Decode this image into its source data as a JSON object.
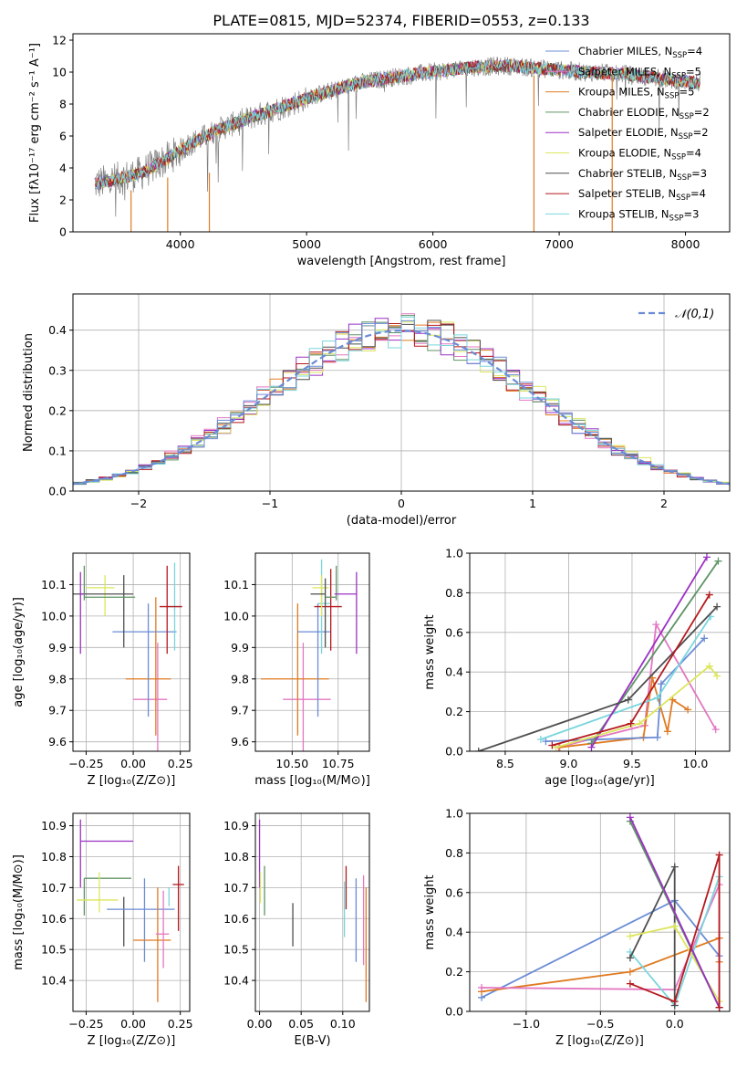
{
  "title": "PLATE=0815, MJD=52374, FIBERID=0553, z=0.133",
  "colors": [
    "#7f7f7f",
    "#e377c2",
    "#e07b22",
    "#5f9466",
    "#9b30c4",
    "#dce65c",
    "#4f4f4f",
    "#b5191d",
    "#7ad6dd",
    "#6a8cd6"
  ],
  "chart_data": [
    {
      "id": "spectrum",
      "type": "line",
      "xlabel": "wavelength [Angstrom, rest frame]",
      "ylabel": "Flux [fλ10⁻¹⁷ erg cm⁻² s⁻¹ A⁻¹]",
      "xlim": [
        3150,
        8350
      ],
      "ylim": [
        0,
        12.4
      ],
      "xticks": [
        4000,
        5000,
        6000,
        7000,
        8000
      ],
      "yticks": [
        0,
        2,
        4,
        6,
        8,
        10,
        12
      ],
      "data_range": [
        3320,
        8120
      ],
      "continuum": {
        "x": [
          3320,
          3500,
          3700,
          3900,
          4100,
          4300,
          4500,
          4800,
          5100,
          5400,
          5700,
          6000,
          6300,
          6600,
          6900,
          7200,
          7500,
          7800,
          8120
        ],
        "y": [
          3.0,
          3.3,
          3.7,
          4.6,
          5.6,
          6.4,
          7.0,
          7.8,
          8.6,
          9.3,
          9.7,
          10.0,
          10.3,
          10.4,
          10.2,
          10.0,
          9.9,
          9.6,
          9.3
        ]
      },
      "grid": false,
      "legend": {
        "placement": "right",
        "entries": [
          {
            "label": "Chabrier MILES, N",
            "sub": "SSP",
            "tail": "=4",
            "color_index": 9
          },
          {
            "label": "Salpeter MILES, N",
            "sub": "SSP",
            "tail": "=5",
            "color_index": 1
          },
          {
            "label": "Kroupa MILES, N",
            "sub": "SSP",
            "tail": "=5",
            "color_index": 2
          },
          {
            "label": "Chabrier ELODIE, N",
            "sub": "SSP",
            "tail": "=2",
            "color_index": 3
          },
          {
            "label": "Salpeter ELODIE, N",
            "sub": "SSP",
            "tail": "=2",
            "color_index": 4
          },
          {
            "label": "Kroupa ELODIE, N",
            "sub": "SSP",
            "tail": "=4",
            "color_index": 5
          },
          {
            "label": "Chabrier STELIB, N",
            "sub": "SSP",
            "tail": "=3",
            "color_index": 6
          },
          {
            "label": "Salpeter STELIB, N",
            "sub": "SSP",
            "tail": "=4",
            "color_index": 7
          },
          {
            "label": "Kroupa STELIB, N",
            "sub": "SSP",
            "tail": "=3",
            "color_index": 8
          }
        ]
      }
    },
    {
      "id": "residuals",
      "type": "line",
      "xlabel": "(data-model)/error",
      "ylabel": "Normed distribution",
      "xlim": [
        -2.5,
        2.5
      ],
      "ylim": [
        0,
        0.49
      ],
      "xticks": [
        -2,
        -1,
        0,
        1,
        2
      ],
      "yticks": [
        0.0,
        0.1,
        0.2,
        0.3,
        0.4
      ],
      "grid": true,
      "bin_width": 0.1,
      "legend": {
        "placement": "top-right",
        "label": "𝒩(0,1)",
        "color_index": 9
      },
      "gaussian": {
        "mean": 0,
        "sigma": 1
      }
    },
    {
      "id": "age_vs_Z",
      "type": "scatter",
      "xlabel": "Z [log₁₀(Z/Z⊙)]",
      "ylabel": "age [log₁₀(age/yr)]",
      "xlim": [
        -0.32,
        0.3
      ],
      "ylim": [
        9.57,
        10.2
      ],
      "xticks": [
        -0.25,
        0.0,
        0.25
      ],
      "yticks": [
        9.6,
        9.7,
        9.8,
        9.9,
        10.0,
        10.1
      ],
      "grid": true,
      "points": [
        {
          "ci": 1,
          "x": 0.13,
          "y": 9.735,
          "xe": [
            0.13,
            0.05
          ],
          "ye": [
            0.22,
            0.18
          ]
        },
        {
          "ci": 2,
          "x": 0.12,
          "y": 9.8,
          "xe": [
            0.16,
            0.08
          ],
          "ye": [
            0.18,
            0.26
          ]
        },
        {
          "ci": 9,
          "x": 0.08,
          "y": 9.95,
          "xe": [
            0.19,
            0.15
          ],
          "ye": [
            0.27,
            0.09
          ]
        },
        {
          "ci": 8,
          "x": 0.22,
          "y": 10.03,
          "xe": [
            0.04,
            0.03
          ],
          "ye": [
            0.14,
            0.14
          ]
        },
        {
          "ci": 7,
          "x": 0.18,
          "y": 10.03,
          "xe": [
            0.04,
            0.08
          ],
          "ye": [
            0.15,
            0.13
          ]
        },
        {
          "ci": 5,
          "x": -0.15,
          "y": 10.09,
          "xe": [
            0.1,
            0.05
          ],
          "ye": [
            0.09,
            0.04
          ]
        },
        {
          "ci": 6,
          "x": -0.05,
          "y": 10.07,
          "xe": [
            0.28,
            0.05
          ],
          "ye": [
            0.17,
            0.06
          ]
        },
        {
          "ci": 3,
          "x": -0.26,
          "y": 10.06,
          "xe": [
            0.0,
            0.27
          ],
          "ye": [
            0.01,
            0.1
          ]
        },
        {
          "ci": 4,
          "x": -0.28,
          "y": 10.07,
          "xe": [
            0.0,
            0.02
          ],
          "ye": [
            0.19,
            0.07
          ]
        }
      ]
    },
    {
      "id": "age_vs_mass",
      "type": "scatter",
      "xlabel": "mass [log₁₀(M/M⊙)]",
      "xlim": [
        10.3,
        10.92
      ],
      "ylim": [
        9.57,
        10.2
      ],
      "xticks": [
        10.5,
        10.75
      ],
      "yticks": [
        9.6,
        9.7,
        9.8,
        9.9,
        10.0,
        10.1
      ],
      "grid": true,
      "points": [
        {
          "ci": 1,
          "x": 10.56,
          "y": 9.735,
          "xe": [
            0.11,
            0.15
          ],
          "ye": [
            0.18,
            0.18
          ]
        },
        {
          "ci": 2,
          "x": 10.53,
          "y": 9.8,
          "xe": [
            0.2,
            0.17
          ],
          "ye": [
            0.18,
            0.24
          ]
        },
        {
          "ci": 9,
          "x": 10.64,
          "y": 9.95,
          "xe": [
            0.11,
            0.07
          ],
          "ye": [
            0.27,
            0.09
          ]
        },
        {
          "ci": 8,
          "x": 10.66,
          "y": 10.04,
          "xe": [
            0.02,
            0.05
          ],
          "ye": [
            0.16,
            0.14
          ]
        },
        {
          "ci": 7,
          "x": 10.71,
          "y": 10.03,
          "xe": [
            0.09,
            0.06
          ],
          "ye": [
            0.14,
            0.12
          ]
        },
        {
          "ci": 5,
          "x": 10.66,
          "y": 10.09,
          "xe": [
            0.05,
            0.04
          ],
          "ye": [
            0.09,
            0.04
          ]
        },
        {
          "ci": 6,
          "x": 10.68,
          "y": 10.07,
          "xe": [
            0.08,
            0.0
          ],
          "ye": [
            0.17,
            0.05
          ]
        },
        {
          "ci": 3,
          "x": 10.74,
          "y": 10.06,
          "xe": [
            0.06,
            0.0
          ],
          "ye": [
            0.01,
            0.1
          ]
        },
        {
          "ci": 4,
          "x": 10.85,
          "y": 10.07,
          "xe": [
            0.12,
            0.0
          ],
          "ye": [
            0.19,
            0.07
          ]
        }
      ]
    },
    {
      "id": "weight_vs_age",
      "type": "line",
      "xlabel": "age [log₁₀(age/yr)]",
      "ylabel": "mass weight",
      "xlim": [
        8.22,
        10.27
      ],
      "ylim": [
        0,
        1.0
      ],
      "xticks": [
        8.5,
        9.0,
        9.5,
        10.0
      ],
      "yticks": [
        0.0,
        0.2,
        0.4,
        0.6,
        0.8,
        1.0
      ],
      "grid": true,
      "series": [
        {
          "ci": 1,
          "x": [
            8.92,
            9.6,
            9.69,
            10.16
          ],
          "y": [
            0.02,
            0.13,
            0.64,
            0.11
          ]
        },
        {
          "ci": 2,
          "x": [
            8.93,
            9.59,
            9.66,
            9.78,
            9.82,
            9.94
          ],
          "y": [
            0.02,
            0.07,
            0.37,
            0.1,
            0.26,
            0.21
          ]
        },
        {
          "ci": 9,
          "x": [
            8.82,
            9.7,
            9.73,
            10.07
          ],
          "y": [
            0.05,
            0.07,
            0.34,
            0.57
          ]
        },
        {
          "ci": 8,
          "x": [
            8.78,
            9.7,
            10.12
          ],
          "y": [
            0.06,
            0.27,
            0.68
          ]
        },
        {
          "ci": 3,
          "x": [
            9.18,
            10.18
          ],
          "y": [
            0.04,
            0.96
          ]
        },
        {
          "ci": 4,
          "x": [
            9.18,
            10.09
          ],
          "y": [
            0.02,
            0.98
          ]
        },
        {
          "ci": 5,
          "x": [
            8.9,
            9.56,
            10.11,
            10.17
          ],
          "y": [
            0.02,
            0.14,
            0.43,
            0.38
          ]
        },
        {
          "ci": 6,
          "x": [
            8.29,
            9.47,
            10.17
          ],
          "y": [
            0.0,
            0.26,
            0.73
          ]
        },
        {
          "ci": 7,
          "x": [
            8.87,
            9.49,
            10.11
          ],
          "y": [
            0.03,
            0.14,
            0.79
          ]
        }
      ]
    },
    {
      "id": "mass_vs_Z",
      "type": "scatter",
      "xlabel": "Z [log₁₀(Z/Z⊙)]",
      "ylabel": "mass [log₁₀(M/M⊙)]",
      "xlim": [
        -0.32,
        0.3
      ],
      "ylim": [
        10.3,
        10.94
      ],
      "xticks": [
        -0.25,
        0.0,
        0.25
      ],
      "yticks": [
        10.4,
        10.5,
        10.6,
        10.7,
        10.8,
        10.9
      ],
      "grid": true,
      "points": [
        {
          "ci": 4,
          "x": -0.28,
          "y": 10.85,
          "xe": [
            0.0,
            0.28
          ],
          "ye": [
            0.15,
            0.07
          ]
        },
        {
          "ci": 3,
          "x": -0.26,
          "y": 10.73,
          "xe": [
            0.0,
            0.25
          ],
          "ye": [
            0.12,
            0.0
          ]
        },
        {
          "ci": 5,
          "x": -0.18,
          "y": 10.66,
          "xe": [
            0.12,
            0.1
          ],
          "ye": [
            0.04,
            0.09
          ]
        },
        {
          "ci": 6,
          "x": -0.05,
          "y": 10.63,
          "xe": [
            0.0,
            0.0
          ],
          "ye": [
            0.12,
            0.04
          ]
        },
        {
          "ci": 9,
          "x": 0.06,
          "y": 10.63,
          "xe": [
            0.2,
            0.16
          ],
          "ye": [
            0.17,
            0.1
          ]
        },
        {
          "ci": 2,
          "x": 0.13,
          "y": 10.53,
          "xe": [
            0.13,
            0.07
          ],
          "ye": [
            0.2,
            0.17
          ]
        },
        {
          "ci": 1,
          "x": 0.16,
          "y": 10.55,
          "xe": [
            0.04,
            0.03
          ],
          "ye": [
            0.11,
            0.14
          ]
        },
        {
          "ci": 8,
          "x": 0.19,
          "y": 10.66,
          "xe": [
            0.0,
            0.0
          ],
          "ye": [
            0.02,
            0.04
          ]
        },
        {
          "ci": 7,
          "x": 0.24,
          "y": 10.71,
          "xe": [
            0.03,
            0.03
          ],
          "ye": [
            0.15,
            0.06
          ]
        }
      ]
    },
    {
      "id": "mass_vs_EBV",
      "type": "scatter",
      "xlabel": "E(B-V)",
      "xlim": [
        -0.005,
        0.132
      ],
      "ylim": [
        10.3,
        10.94
      ],
      "xticks": [
        0.0,
        0.05,
        0.1
      ],
      "xticklabels": [
        "0.00",
        "0.05",
        "0.10"
      ],
      "yticks": [
        10.4,
        10.5,
        10.6,
        10.7,
        10.8,
        10.9
      ],
      "grid": true,
      "points": [
        {
          "ci": 4,
          "x": 0.0,
          "y": 10.84,
          "xe": [
            0,
            0
          ],
          "ye": [
            0.14,
            0.08
          ]
        },
        {
          "ci": 5,
          "x": 0.001,
          "y": 10.7,
          "xe": [
            0,
            0
          ],
          "ye": [
            0.05,
            0.05
          ]
        },
        {
          "ci": 3,
          "x": 0.006,
          "y": 10.69,
          "xe": [
            0,
            0
          ],
          "ye": [
            0.08,
            0.08
          ]
        },
        {
          "ci": 6,
          "x": 0.04,
          "y": 10.58,
          "xe": [
            0,
            0
          ],
          "ye": [
            0.07,
            0.07
          ]
        },
        {
          "ci": 8,
          "x": 0.102,
          "y": 10.63,
          "xe": [
            0,
            0
          ],
          "ye": [
            0.09,
            0.09
          ]
        },
        {
          "ci": 7,
          "x": 0.104,
          "y": 10.68,
          "xe": [
            0,
            0
          ],
          "ye": [
            0.05,
            0.09
          ]
        },
        {
          "ci": 9,
          "x": 0.116,
          "y": 10.6,
          "xe": [
            0,
            0
          ],
          "ye": [
            0.14,
            0.13
          ]
        },
        {
          "ci": 1,
          "x": 0.125,
          "y": 10.55,
          "xe": [
            0,
            0
          ],
          "ye": [
            0.1,
            0.19
          ]
        },
        {
          "ci": 2,
          "x": 0.128,
          "y": 10.53,
          "xe": [
            0,
            0
          ],
          "ye": [
            0.2,
            0.17
          ]
        }
      ]
    },
    {
      "id": "weight_vs_Z",
      "type": "line",
      "xlabel": "Z [log₁₀(Z/Z⊙)]",
      "ylabel": "mass weight",
      "xlim": [
        -1.38,
        0.37
      ],
      "ylim": [
        0,
        1.0
      ],
      "xticks": [
        -1.0,
        -0.5,
        0.0
      ],
      "yticks": [
        0.0,
        0.2,
        0.4,
        0.6,
        0.8,
        1.0
      ],
      "grid": true,
      "series": [
        {
          "ci": 9,
          "x": [
            -1.3,
            0.0,
            0.3
          ],
          "y": [
            0.07,
            0.56,
            0.28
          ]
        },
        {
          "ci": 2,
          "x": [
            -1.3,
            -0.3,
            0.3,
            0.3
          ],
          "y": [
            0.1,
            0.2,
            0.37,
            0.25
          ]
        },
        {
          "ci": 1,
          "x": [
            -1.3,
            0.0,
            0.3,
            0.3
          ],
          "y": [
            0.12,
            0.11,
            0.64,
            0.02
          ]
        },
        {
          "ci": 8,
          "x": [
            -0.3,
            0.0,
            0.3
          ],
          "y": [
            0.3,
            0.03,
            0.68
          ]
        },
        {
          "ci": 6,
          "x": [
            -0.3,
            0.0,
            0.0
          ],
          "y": [
            0.27,
            0.73,
            0.03
          ]
        },
        {
          "ci": 5,
          "x": [
            -0.3,
            0.0,
            0.3,
            0.3
          ],
          "y": [
            0.38,
            0.43,
            0.05,
            0.02
          ]
        },
        {
          "ci": 3,
          "x": [
            -0.3,
            0.3
          ],
          "y": [
            0.96,
            0.02
          ]
        },
        {
          "ci": 4,
          "x": [
            -0.3,
            0.3
          ],
          "y": [
            0.98,
            0.02
          ]
        },
        {
          "ci": 7,
          "x": [
            -0.3,
            0.0,
            0.3,
            0.3
          ],
          "y": [
            0.14,
            0.05,
            0.79,
            0.02
          ]
        }
      ]
    }
  ]
}
